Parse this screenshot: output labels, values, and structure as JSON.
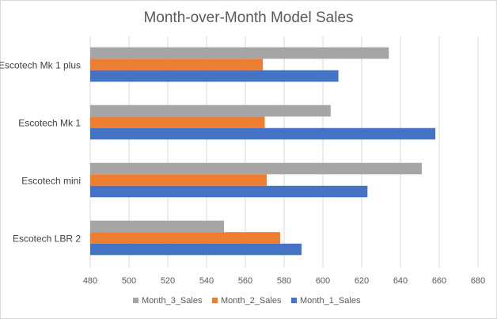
{
  "chart_data": {
    "type": "bar",
    "orientation": "horizontal",
    "title": "Month-over-Month Model Sales",
    "categories": [
      "Escotech LBR 2",
      "Escotech mini",
      "Escotech Mk 1",
      "Escotech Mk 1 plus"
    ],
    "series": [
      {
        "name": "Month_1_Sales",
        "color": "#4472C4",
        "values": [
          589,
          623,
          658,
          608
        ]
      },
      {
        "name": "Month_2_Sales",
        "color": "#ED7D31",
        "values": [
          578,
          571,
          570,
          569
        ]
      },
      {
        "name": "Month_3_Sales",
        "color": "#A5A5A5",
        "values": [
          549,
          651,
          604,
          634
        ]
      }
    ],
    "xlim": [
      480,
      680
    ],
    "x_ticks": [
      480,
      500,
      520,
      540,
      560,
      580,
      600,
      620,
      640,
      660,
      680
    ],
    "grid": true,
    "legend_position": "bottom",
    "legend_order": [
      "Month_3_Sales",
      "Month_2_Sales",
      "Month_1_Sales"
    ]
  }
}
